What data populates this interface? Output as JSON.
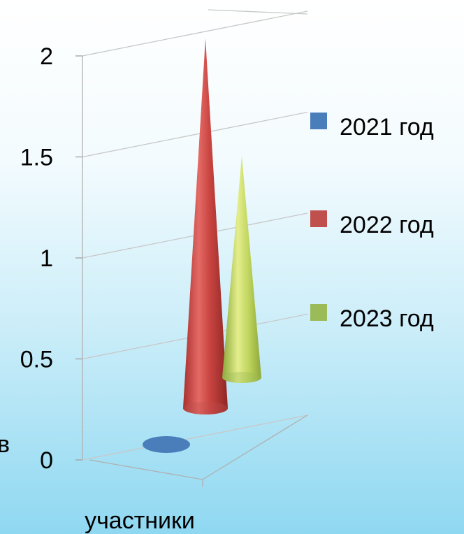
{
  "chart_data": {
    "type": "bar",
    "subtype": "3d-cone",
    "categories": [
      "участники"
    ],
    "series": [
      {
        "name": "2021 год",
        "values": [
          0
        ],
        "color": "#4a7ebb"
      },
      {
        "name": "2022 год",
        "values": [
          2
        ],
        "color": "#c0504d"
      },
      {
        "name": "2023 год",
        "values": [
          1.2
        ],
        "color": "#9bbb59"
      }
    ],
    "yticks": [
      "0",
      "0.5",
      "1",
      "1.5",
      "2"
    ],
    "ylim": [
      0,
      2
    ],
    "xlabel": "участники",
    "grid": true,
    "legend_position": "right"
  },
  "left_edge_fragment": "в"
}
